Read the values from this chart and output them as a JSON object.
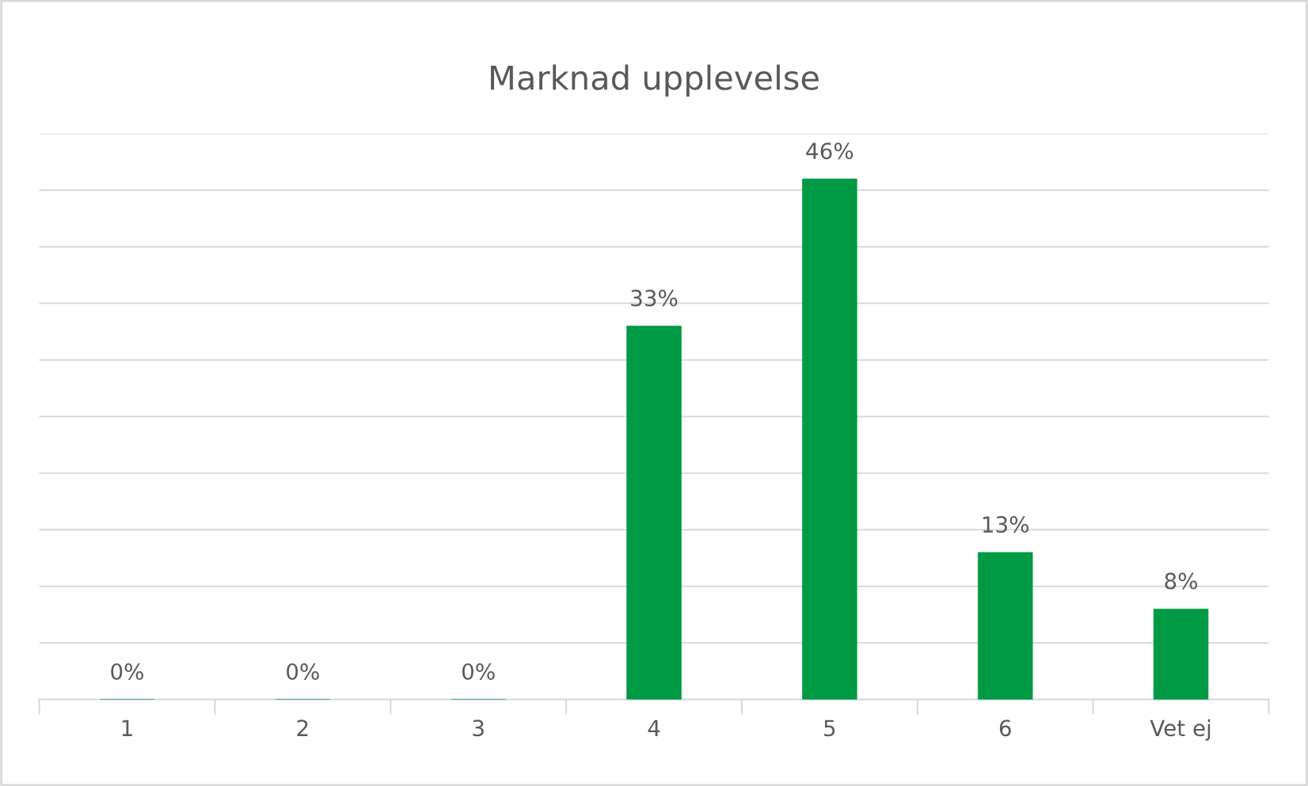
{
  "chart_data": {
    "type": "bar",
    "title": "Marknad upplevelse",
    "categories": [
      "1",
      "2",
      "3",
      "4",
      "5",
      "6",
      "Vet ej"
    ],
    "values": [
      0,
      0,
      0,
      33,
      46,
      13,
      8
    ],
    "value_labels": [
      "0%",
      "0%",
      "0%",
      "33%",
      "46%",
      "13%",
      "8%"
    ],
    "color": "#009a44",
    "ylim": [
      0,
      50
    ],
    "yticks": [
      {
        "value": 0,
        "label": null
      },
      {
        "value": 5,
        "label": null
      },
      {
        "value": 10,
        "label": null
      },
      {
        "value": 15,
        "label": null
      },
      {
        "value": 20,
        "label": null
      },
      {
        "value": 25,
        "label": null
      },
      {
        "value": 30,
        "label": null
      },
      {
        "value": 35,
        "label": null
      },
      {
        "value": 40,
        "label": null
      },
      {
        "value": 45,
        "label": null
      },
      {
        "value": 50,
        "label": null
      }
    ],
    "tick_labels": "x",
    "grid": "y"
  }
}
